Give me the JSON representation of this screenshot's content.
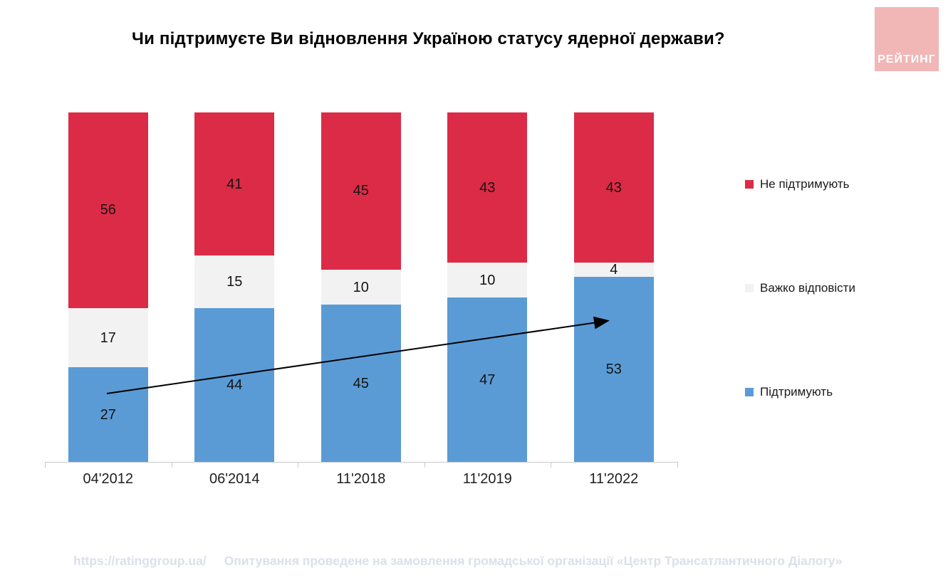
{
  "title": "Чи підтримуєте Ви відновлення Україною статусу ядерної держави?",
  "logo": {
    "text": "РЕЙТИНГ",
    "bg": "#f1b6b6",
    "fg": "#ffffff"
  },
  "chart_data": {
    "type": "bar",
    "subtype": "stacked-vertical",
    "categories": [
      "04'2012",
      "06'2014",
      "11'2018",
      "11'2019",
      "11'2022"
    ],
    "series": [
      {
        "key": "support",
        "name": "Підтримують",
        "color": "#5b9bd5",
        "values": [
          27,
          44,
          45,
          47,
          53
        ]
      },
      {
        "key": "undecided",
        "name": "Важко відповісти",
        "color": "#f2f2f3",
        "values": [
          17,
          15,
          10,
          10,
          4
        ]
      },
      {
        "key": "oppose",
        "name": "Не підтримують",
        "color": "#dc2b47",
        "values": [
          56,
          41,
          45,
          43,
          43
        ]
      }
    ],
    "ylim": [
      0,
      100
    ],
    "grid": false,
    "legend_position": "right",
    "annotation": "arrow showing upward trend of support from 27 (04'2012) to 53 (11'2022)"
  },
  "legend": {
    "items": [
      {
        "label": "Не підтримують",
        "color": "#dc2b47"
      },
      {
        "label": "Важко відповісти",
        "color": "#f2f2f3"
      },
      {
        "label": "Підтримують",
        "color": "#5b9bd5"
      }
    ]
  },
  "footer": {
    "url": "https://ratinggroup.ua/",
    "note": "Опитування проведене на замовлення громадської організації «Центр Трансатлантичного Діалогу»"
  }
}
